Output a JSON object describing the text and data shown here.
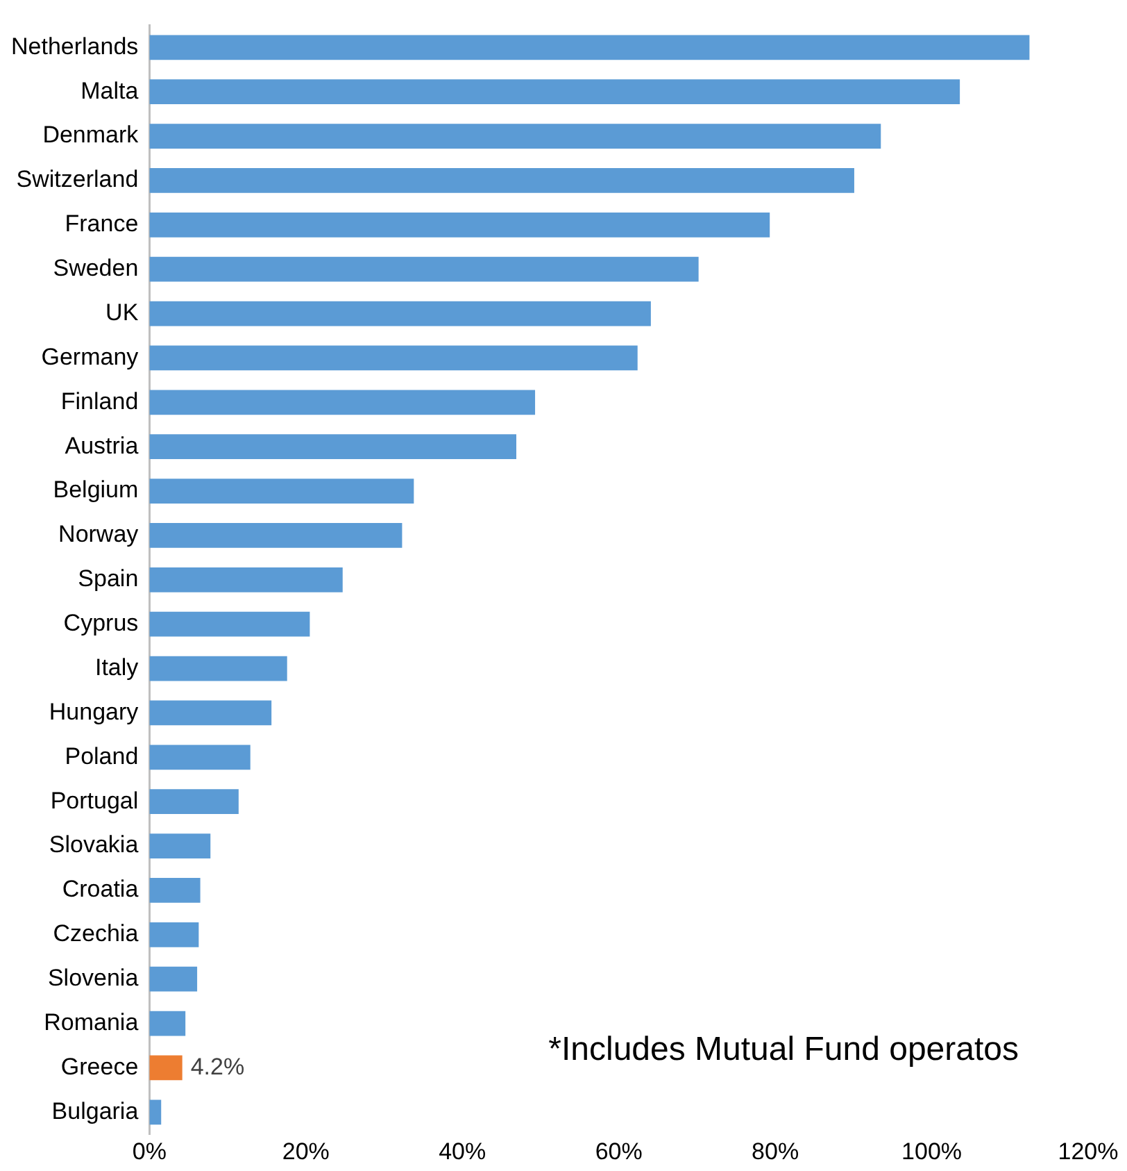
{
  "chart_data": {
    "type": "bar",
    "orientation": "horizontal",
    "categories": [
      "Netherlands",
      "Malta",
      "Denmark",
      "Switzerland",
      "France",
      "Sweden",
      "UK",
      "Germany",
      "Finland",
      "Austria",
      "Belgium",
      "Norway",
      "Spain",
      "Cyprus",
      "Italy",
      "Hungary",
      "Poland",
      "Portugal",
      "Slovakia",
      "Croatia",
      "Czechia",
      "Slovenia",
      "Romania",
      "Greece",
      "Bulgaria"
    ],
    "values": [
      112.5,
      103.6,
      93.5,
      90.1,
      79.3,
      70.2,
      64.1,
      62.4,
      49.3,
      46.9,
      33.8,
      32.3,
      24.7,
      20.5,
      17.6,
      15.6,
      12.9,
      11.4,
      7.8,
      6.5,
      6.3,
      6.1,
      4.6,
      4.2,
      1.5
    ],
    "colors": [
      "#5b9bd5",
      "#5b9bd5",
      "#5b9bd5",
      "#5b9bd5",
      "#5b9bd5",
      "#5b9bd5",
      "#5b9bd5",
      "#5b9bd5",
      "#5b9bd5",
      "#5b9bd5",
      "#5b9bd5",
      "#5b9bd5",
      "#5b9bd5",
      "#5b9bd5",
      "#5b9bd5",
      "#5b9bd5",
      "#5b9bd5",
      "#5b9bd5",
      "#5b9bd5",
      "#5b9bd5",
      "#5b9bd5",
      "#5b9bd5",
      "#5b9bd5",
      "#ed7d31",
      "#5b9bd5"
    ],
    "value_labels": [
      null,
      null,
      null,
      null,
      null,
      null,
      null,
      null,
      null,
      null,
      null,
      null,
      null,
      null,
      null,
      null,
      null,
      null,
      null,
      null,
      null,
      null,
      null,
      "4.2%",
      null
    ],
    "xlim": [
      0,
      120
    ],
    "xticks": [
      {
        "value": 0,
        "label": "0%"
      },
      {
        "value": 20,
        "label": "20%"
      },
      {
        "value": 40,
        "label": "40%"
      },
      {
        "value": 60,
        "label": "60%"
      },
      {
        "value": 80,
        "label": "80%"
      },
      {
        "value": 100,
        "label": "100%"
      },
      {
        "value": 120,
        "label": "120%"
      }
    ],
    "grid": false,
    "legend": false,
    "annotations": [
      "*Includes Mutual Fund operatos"
    ]
  }
}
